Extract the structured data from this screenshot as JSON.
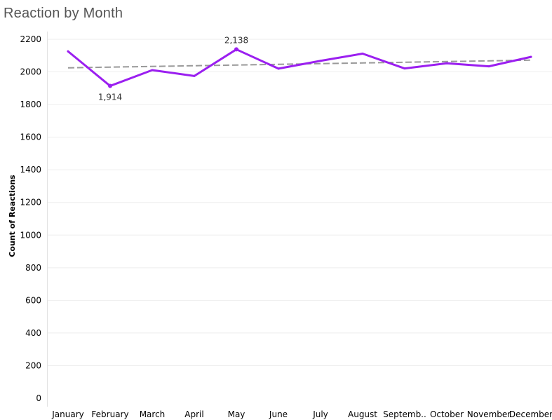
{
  "chart_data": {
    "type": "line",
    "title": "Reaction by Month",
    "xlabel": "",
    "ylabel": "Count of Reactions",
    "categories": [
      "January",
      "February",
      "March",
      "April",
      "May",
      "June",
      "July",
      "August",
      "Septemb..",
      "October",
      "November",
      "December"
    ],
    "series": [
      {
        "values": [
          2126,
          1914,
          2011,
          1975,
          2138,
          2020,
          2068,
          2112,
          2021,
          2053,
          2034,
          2092
        ]
      }
    ],
    "trend_line": {
      "start": 2025,
      "end": 2072,
      "style": "dashed"
    },
    "data_labels": [
      {
        "index": 1,
        "text": "1,914",
        "position": "below"
      },
      {
        "index": 4,
        "text": "2,138",
        "position": "above"
      }
    ],
    "y_ticks": [
      0,
      200,
      400,
      600,
      800,
      1000,
      1200,
      1400,
      1600,
      1800,
      2000,
      2200
    ],
    "ylim": [
      0,
      2200
    ],
    "grid": true,
    "colors": {
      "line": "#9b1ff0",
      "trend": "#999999",
      "grid": "#eeeeee"
    }
  }
}
